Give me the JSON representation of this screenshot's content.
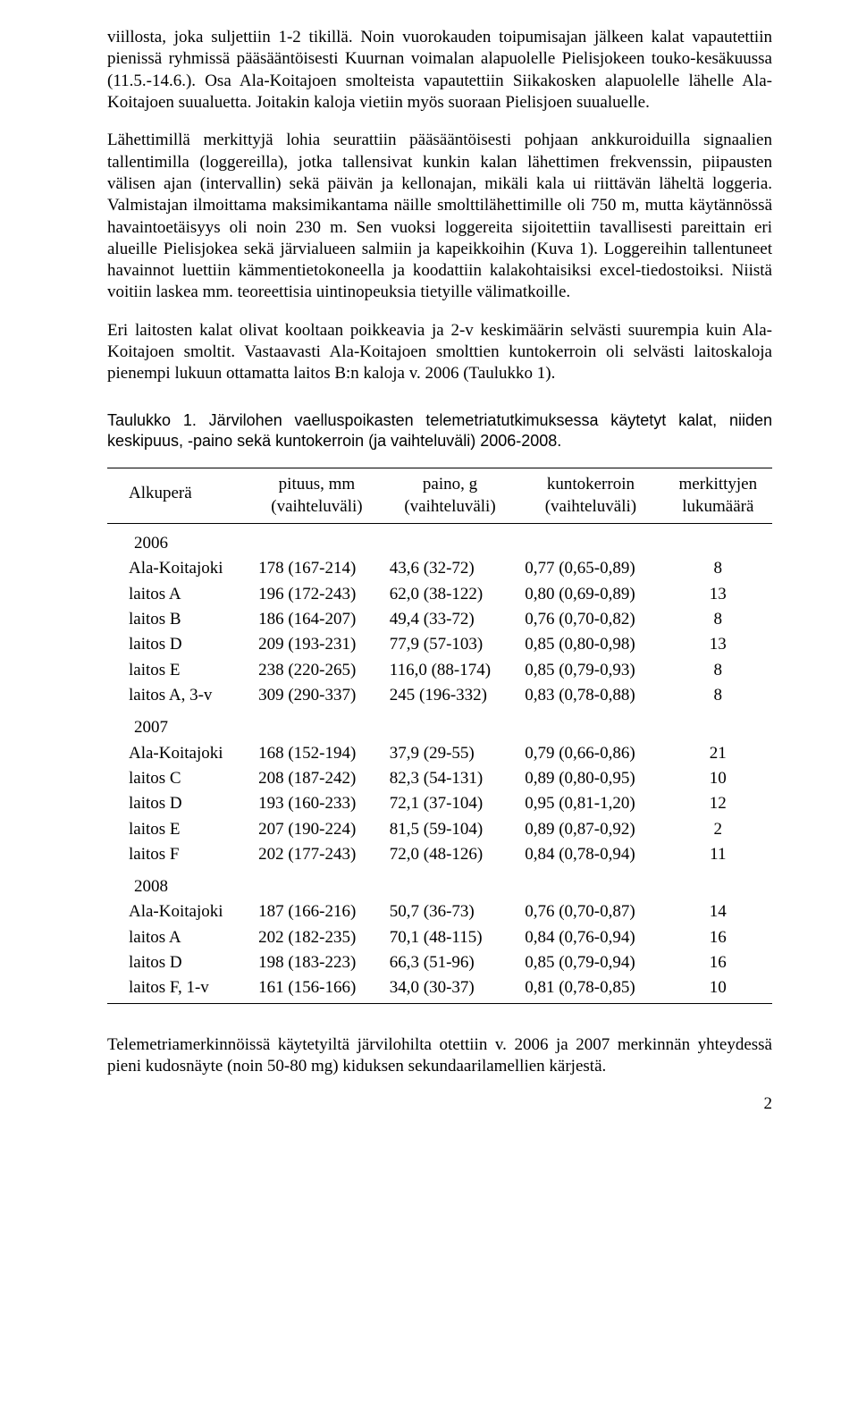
{
  "para1": "viillosta, joka suljettiin 1-2 tikillä. Noin vuorokauden toipumisajan jälkeen kalat va­pautettiin pienissä ryhmissä pääsääntöisesti Kuurnan voimalan alapuolelle Pielisjo­keen touko-kesäkuussa (11.5.-14.6.). Osa Ala-Koitajoen smolteista vapautettiin Siika­kosken alapuolelle lähelle Ala-Koitajoen suualuetta. Joitakin kaloja vietiin myös suo­raan Pielisjoen suualuelle.",
  "para2": "Lähettimillä merkittyjä lohia seurattiin pääsääntöisesti pohjaan ankkuroiduilla signaa­lien tallentimilla (loggereilla), jotka tallensivat kunkin kalan lähettimen frekvenssin, piipausten välisen ajan (intervallin) sekä päivän ja kellonajan, mikäli kala ui riittävän läheltä loggeria. Valmistajan ilmoittama maksimikantama näille smolttilähettimille oli 750 m, mutta käytännössä havaintoetäisyys oli noin 230 m. Sen vuoksi loggereita si­joitettiin tavallisesti pareittain eri alueille Pielisjokea sekä järvialueen salmiin ja ka­peikkoihin (Kuva 1). Loggereihin tallentuneet havainnot luettiin kämmentietokoneella ja koodattiin kalakohtaisiksi excel-tiedostoiksi. Niistä voitiin laskea mm. teoreettisia uintinopeuksia tietyille välimatkoille.",
  "para3": "Eri laitosten kalat olivat kooltaan poikkeavia ja 2-v keskimäärin selvästi suurempia kuin Ala-Koitajoen smoltit. Vastaavasti Ala-Koitajoen smolttien kuntokerroin oli sel­västi laitoskaloja pienempi lukuun ottamatta laitos B:n kaloja v. 2006 (Taulukko 1).",
  "tableTitle": "Taulukko 1. Järvilohen vaelluspoikasten telemetriatutkimuksessa käytetyt kalat, nii­den keskipuus, -paino sekä kuntokerroin (ja vaihteluväli) 2006-2008.",
  "head": {
    "c1a": "Alkuperä",
    "c2a": "pituus, mm",
    "c2b": "(vaihteluväli)",
    "c3a": "paino, g",
    "c3b": "(vaihteluväli)",
    "c4a": "kuntokerroin",
    "c4b": "(vaihteluväli)",
    "c5a": "merkittyjen",
    "c5b": "lukumäärä"
  },
  "groups": [
    {
      "year": "2006",
      "rows": [
        [
          "Ala-Koitajoki",
          "178 (167-214)",
          "43,6 (32-72)",
          "0,77 (0,65-0,89)",
          "8"
        ],
        [
          "laitos A",
          "196 (172-243)",
          "62,0 (38-122)",
          "0,80 (0,69-0,89)",
          "13"
        ],
        [
          "laitos B",
          "186 (164-207)",
          "49,4 (33-72)",
          "0,76 (0,70-0,82)",
          "8"
        ],
        [
          "laitos D",
          "209 (193-231)",
          "77,9 (57-103)",
          "0,85 (0,80-0,98)",
          "13"
        ],
        [
          "laitos E",
          "238 (220-265)",
          "116,0 (88-174)",
          "0,85 (0,79-0,93)",
          "8"
        ],
        [
          "laitos A, 3-v",
          "309 (290-337)",
          "245 (196-332)",
          "0,83 (0,78-0,88)",
          "8"
        ]
      ]
    },
    {
      "year": "2007",
      "rows": [
        [
          "Ala-Koitajoki",
          "168 (152-194)",
          "37,9 (29-55)",
          "0,79 (0,66-0,86)",
          "21"
        ],
        [
          "laitos C",
          "208 (187-242)",
          "82,3 (54-131)",
          "0,89 (0,80-0,95)",
          "10"
        ],
        [
          "laitos D",
          "193 (160-233)",
          "72,1 (37-104)",
          "0,95 (0,81-1,20)",
          "12"
        ],
        [
          "laitos E",
          "207 (190-224)",
          "81,5 (59-104)",
          "0,89 (0,87-0,92)",
          "2"
        ],
        [
          "laitos F",
          "202 (177-243)",
          "72,0 (48-126)",
          "0,84 (0,78-0,94)",
          "11"
        ]
      ]
    },
    {
      "year": "2008",
      "rows": [
        [
          "Ala-Koitajoki",
          "187 (166-216)",
          "50,7 (36-73)",
          "0,76 (0,70-0,87)",
          "14"
        ],
        [
          "laitos A",
          "202 (182-235)",
          "70,1 (48-115)",
          "0,84 (0,76-0,94)",
          "16"
        ],
        [
          "laitos D",
          "198 (183-223)",
          "66,3 (51-96)",
          "0,85 (0,79-0,94)",
          "16"
        ],
        [
          "laitos F, 1-v",
          "161 (156-166)",
          "34,0 (30-37)",
          "0,81 (0,78-0,85)",
          "10"
        ]
      ]
    }
  ],
  "footer": "Telemetriamerkinnöissä käytetyiltä järvilohilta otettiin v. 2006 ja 2007 merkinnän yh­teydessä pieni kudosnäyte (noin 50-80 mg) kiduksen sekundaarilamellien kärjestä.",
  "pagenum": "2"
}
